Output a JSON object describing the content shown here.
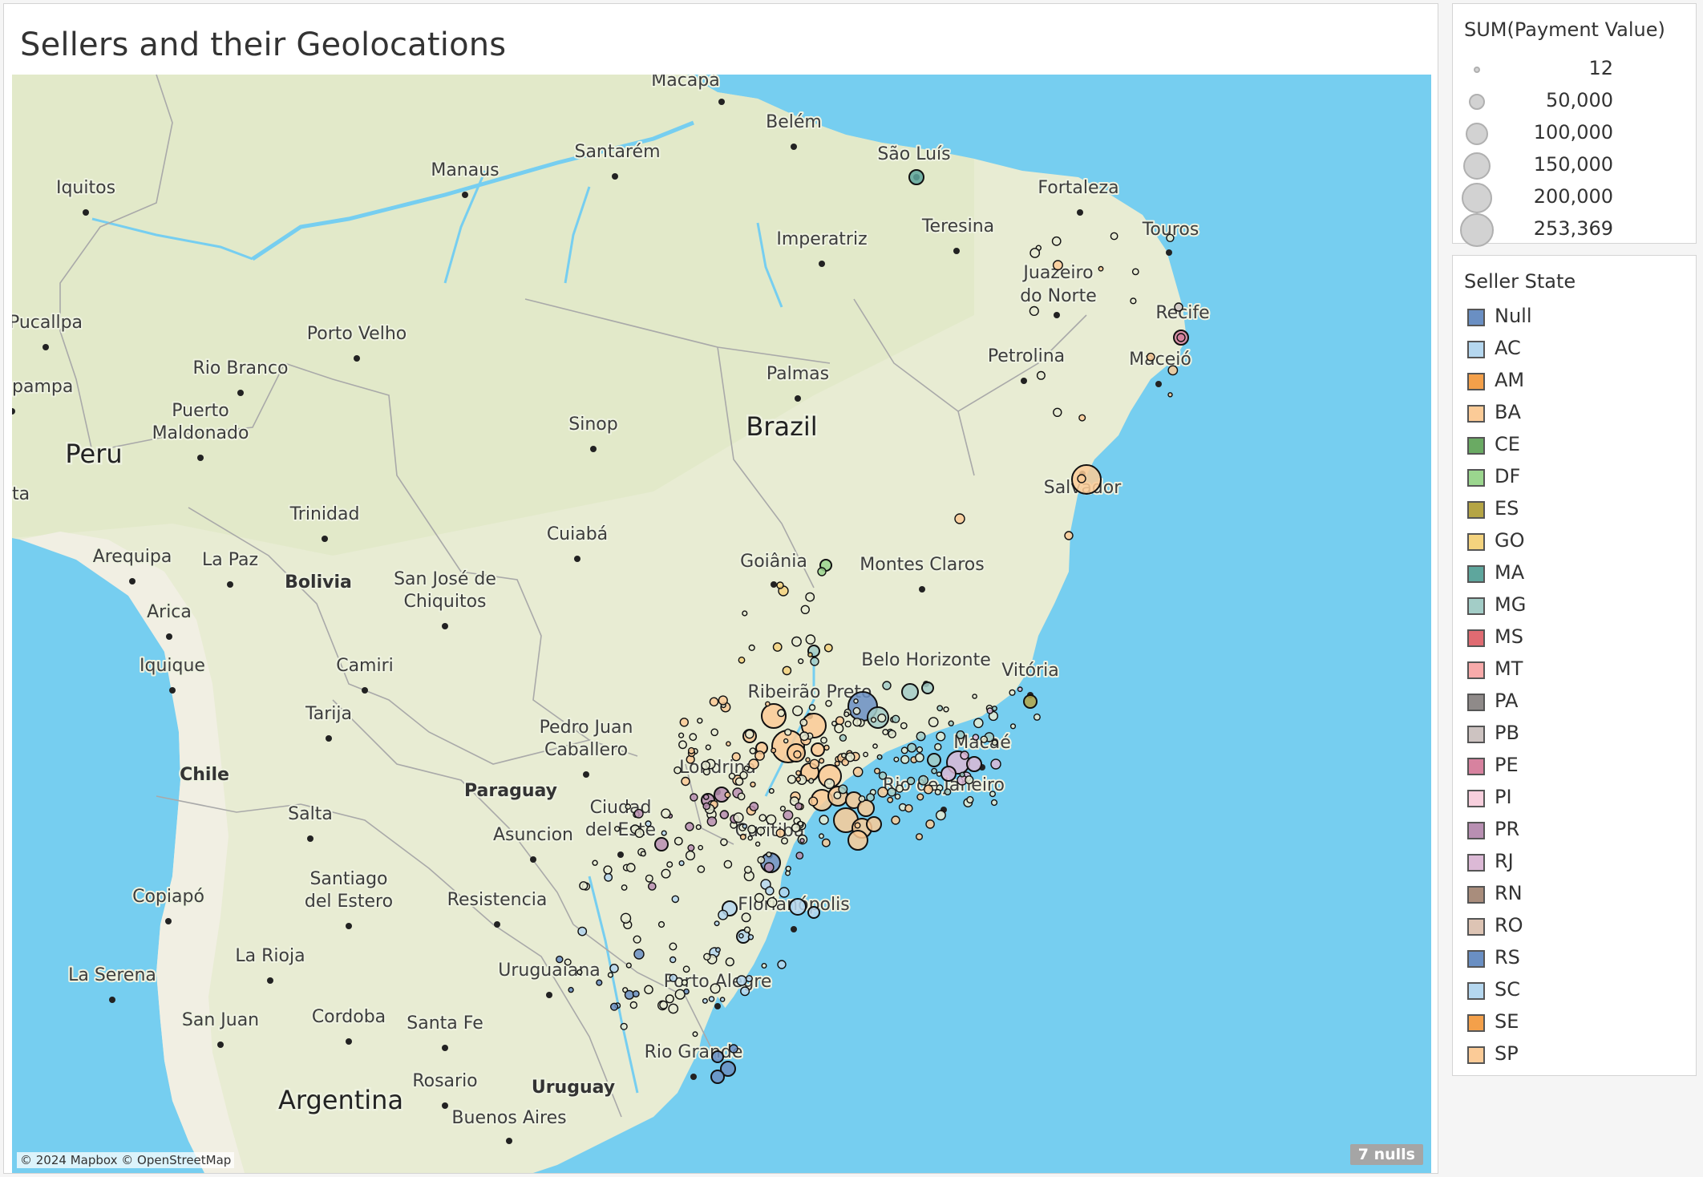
{
  "title": "Sellers and their Geolocations",
  "attribution": "© 2024 Mapbox © OpenStreetMap",
  "nulls_badge": "7 nulls",
  "size_legend": {
    "title": "SUM(Payment Value)",
    "items": [
      "12",
      "50,000",
      "100,000",
      "150,000",
      "200,000",
      "253,369"
    ]
  },
  "color_legend": {
    "title": "Seller State",
    "items": [
      {
        "label": "Null",
        "color": "#6a8fc3"
      },
      {
        "label": "AC",
        "color": "#b5d7ef"
      },
      {
        "label": "AM",
        "color": "#f4a04a"
      },
      {
        "label": "BA",
        "color": "#fbcb97"
      },
      {
        "label": "CE",
        "color": "#6aaa63"
      },
      {
        "label": "DF",
        "color": "#9bd68e"
      },
      {
        "label": "ES",
        "color": "#b5a545"
      },
      {
        "label": "GO",
        "color": "#f4d37e"
      },
      {
        "label": "MA",
        "color": "#5ea69d"
      },
      {
        "label": "MG",
        "color": "#a3cdc7"
      },
      {
        "label": "MS",
        "color": "#e06b72"
      },
      {
        "label": "MT",
        "color": "#f8aaaa"
      },
      {
        "label": "PA",
        "color": "#8f8a89"
      },
      {
        "label": "PB",
        "color": "#cdc3c1"
      },
      {
        "label": "PE",
        "color": "#d7829f"
      },
      {
        "label": "PI",
        "color": "#f7cfdd"
      },
      {
        "label": "PR",
        "color": "#b88fb2"
      },
      {
        "label": "RJ",
        "color": "#dcb9d6"
      },
      {
        "label": "RN",
        "color": "#a98d7c"
      },
      {
        "label": "RO",
        "color": "#ddc4b4"
      },
      {
        "label": "RS",
        "color": "#6a8fc3"
      },
      {
        "label": "SC",
        "color": "#b5d7ef"
      },
      {
        "label": "SE",
        "color": "#f4a04a"
      },
      {
        "label": "SP",
        "color": "#fbcb97"
      }
    ]
  },
  "map": {
    "countries": [
      "Brazil",
      "Peru",
      "Bolivia",
      "Paraguay",
      "Chile",
      "Argentina",
      "Uruguay"
    ],
    "cities": [
      "Macapá",
      "Belém",
      "Santarém",
      "Manaus",
      "São Luís",
      "Fortaleza",
      "Iquitos",
      "Teresina",
      "Imperatriz",
      "Touros",
      "Juazeiro",
      "do Norte",
      "Recife",
      "Pucallpa",
      "Porto Velho",
      "Rio Branco",
      "Maceió",
      "Petrolina",
      "Palmas",
      "pampa",
      "Puerto",
      "Maldonado",
      "Sinop",
      "Salvador",
      "ta",
      "Trinidad",
      "Cuiabá",
      "Goiânia",
      "Montes Claros",
      "Arequipa",
      "La Paz",
      "San José de",
      "Chiquitos",
      "Arica",
      "Belo Horizonte",
      "Vitória",
      "Camiri",
      "Iquique",
      "Tarija",
      "Pedro Juan",
      "Caballero",
      "Macaé",
      "Ribeirão Preto",
      "Londrina",
      "Rio de Janeiro",
      "Salta",
      "Ciudad",
      "del Este",
      "Asuncion",
      "Curitiba",
      "Santiago",
      "del Estero",
      "Copiapó",
      "Resistencia",
      "Florianópolis",
      "La Rioja",
      "Uruguaiana",
      "La Serena",
      "Porto Alegre",
      "San Juan",
      "Cordoba",
      "Santa Fe",
      "Rio Grande",
      "Rosario",
      "Buenos Aires"
    ]
  }
}
